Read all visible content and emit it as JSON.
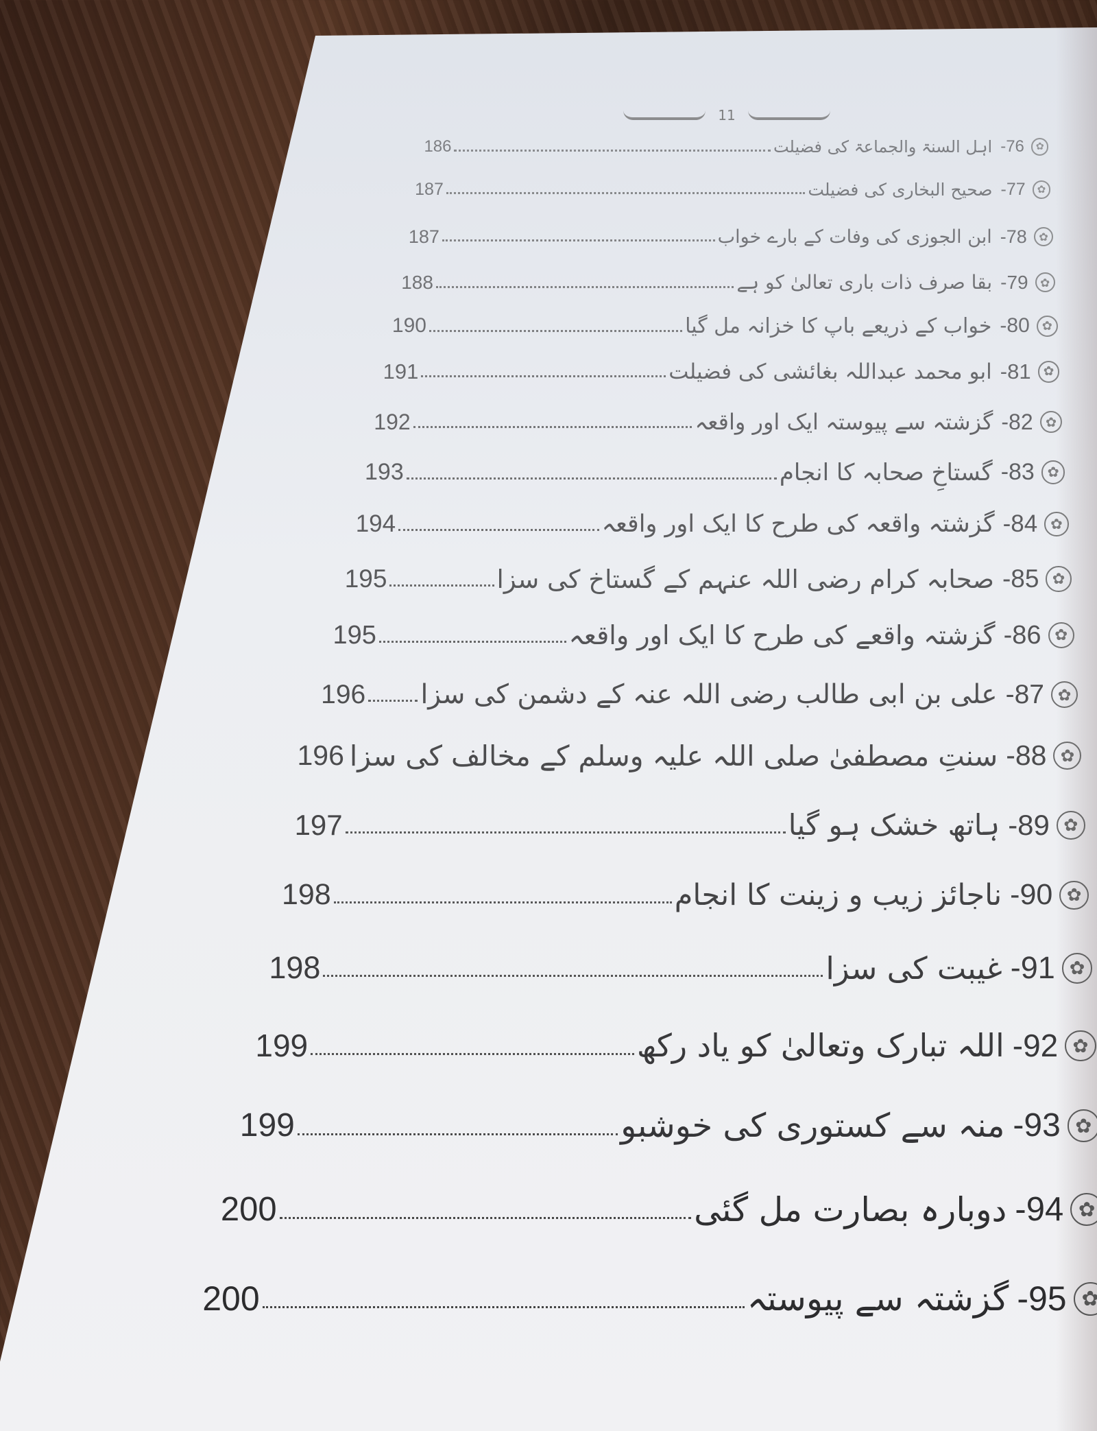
{
  "header": {
    "text": "11"
  },
  "entries": [
    {
      "number": "-76",
      "title": "اہل السنۃ والجماعۃ کی فضیلت",
      "page": "186"
    },
    {
      "number": "-77",
      "title": "صحیح البخاری کی فضیلت",
      "page": "187"
    },
    {
      "number": "-78",
      "title": "ابن الجوزی کی وفات کے بارے خواب",
      "page": "187"
    },
    {
      "number": "-79",
      "title": "بقا صرف ذات باری تعالیٰ کو ہے",
      "page": "188"
    },
    {
      "number": "-80",
      "title": "خواب کے ذریعے باپ کا خزانہ مل گیا",
      "page": "190"
    },
    {
      "number": "-81",
      "title": "ابو محمد عبداللہ بغائشی کی فضیلت",
      "page": "191"
    },
    {
      "number": "-82",
      "title": "گزشتہ سے پیوستہ ایک اور واقعہ",
      "page": "192"
    },
    {
      "number": "-83",
      "title": "گستاخِ صحابہ کا انجام",
      "page": "193"
    },
    {
      "number": "-84",
      "title": "گزشتہ واقعہ کی طرح کا ایک اور واقعہ",
      "page": "194"
    },
    {
      "number": "-85",
      "title": "صحابہ کرام رضی اللہ عنہم کے گستاخ کی سزا",
      "page": "195"
    },
    {
      "number": "-86",
      "title": "گزشتہ واقعے کی طرح کا ایک اور واقعہ",
      "page": "195"
    },
    {
      "number": "-87",
      "title": "علی بن ابی طالب رضی اللہ عنہ کے دشمن کی سزا",
      "page": "196"
    },
    {
      "number": "-88",
      "title": "سنتِ مصطفیٰ صلی اللہ علیہ وسلم کے مخالف کی سزا",
      "page": "196"
    },
    {
      "number": "-89",
      "title": "ہاتھ خشک ہو گیا",
      "page": "197"
    },
    {
      "number": "-90",
      "title": "ناجائز زیب و زینت کا انجام",
      "page": "198"
    },
    {
      "number": "-91",
      "title": "غیبت کی سزا",
      "page": "198"
    },
    {
      "number": "-92",
      "title": "اللہ تبارک وتعالیٰ کو یاد رکھ",
      "page": "199"
    },
    {
      "number": "-93",
      "title": "منہ سے کستوری کی خوشبو",
      "page": "199"
    },
    {
      "number": "-94",
      "title": "دوبارہ بصارت مل گئی",
      "page": "200"
    },
    {
      "number": "-95",
      "title": "گزشتہ سے پیوستہ",
      "page": "200"
    }
  ],
  "icons": {
    "bullet": "flower-icon"
  }
}
